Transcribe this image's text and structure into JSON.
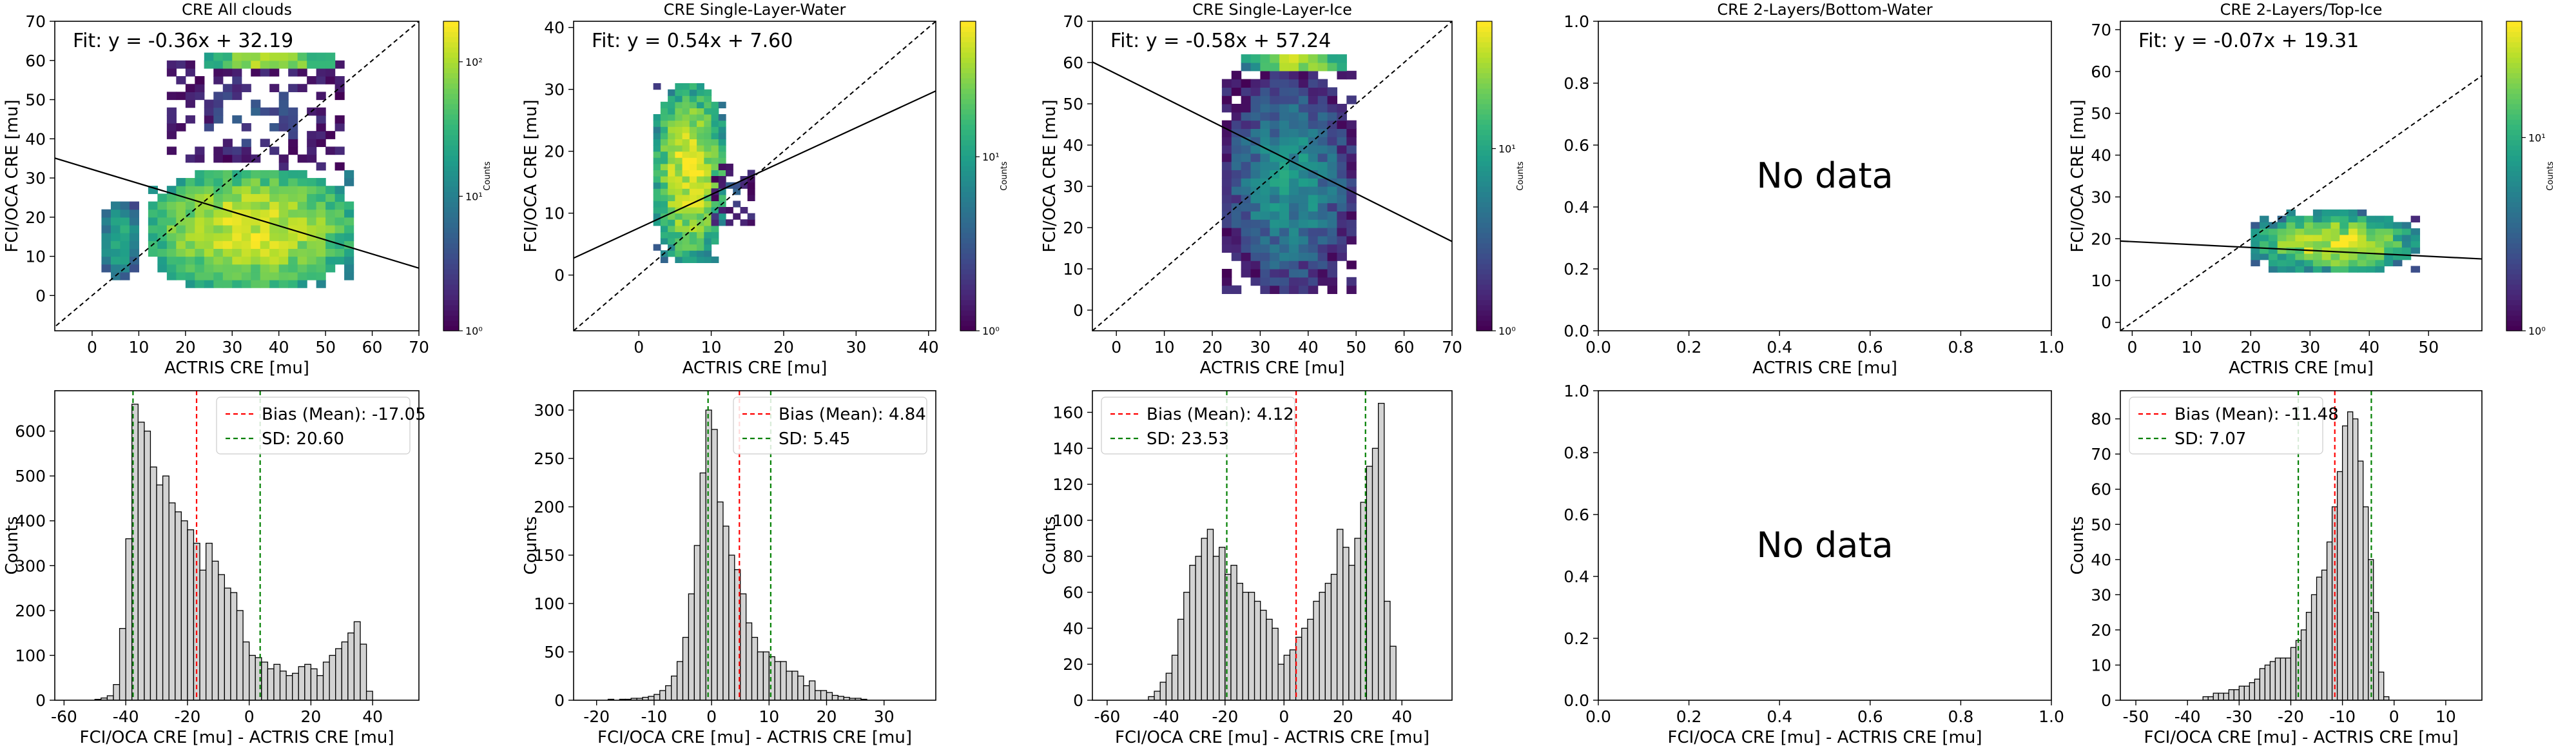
{
  "chart_data": [
    {
      "type": "heatmap",
      "title": "CRE All clouds",
      "xlabel": "ACTRIS CRE [mu]",
      "ylabel": "FCI/OCA CRE [mu]",
      "xlim": [
        -8,
        70
      ],
      "ylim": [
        -9,
        70
      ],
      "xticks": [
        0,
        10,
        20,
        30,
        40,
        50,
        60,
        70
      ],
      "yticks": [
        0,
        10,
        20,
        30,
        40,
        50,
        60,
        70
      ],
      "fit_text": "Fit: y = -0.36x + 32.19",
      "fit": {
        "slope": -0.36,
        "intercept": 32.19
      },
      "identity_line": true,
      "colorbar": {
        "label": "Counts",
        "scale": "log",
        "min": 1,
        "max": 200,
        "ticks": [
          {
            "v": 1,
            "t": "10⁰"
          },
          {
            "v": 10,
            "t": "10¹"
          },
          {
            "v": 100,
            "t": "10²"
          }
        ]
      },
      "binw": 2,
      "clusters": [
        {
          "x": [
            2,
            10
          ],
          "y": [
            4,
            24
          ],
          "peak": 30
        },
        {
          "x": [
            12,
            56
          ],
          "y": [
            2,
            32
          ],
          "peak": 160
        },
        {
          "x": [
            16,
            54
          ],
          "y": [
            32,
            60
          ],
          "peak": 4,
          "sparse": true
        },
        {
          "x": [
            24,
            52
          ],
          "y": [
            58,
            62
          ],
          "peak": 150
        }
      ]
    },
    {
      "type": "heatmap",
      "title": "CRE Single-Layer-Water",
      "xlabel": "ACTRIS CRE [mu]",
      "ylabel": "FCI/OCA CRE [mu]",
      "xlim": [
        -9,
        41
      ],
      "ylim": [
        -9,
        41
      ],
      "xticks": [
        0,
        10,
        20,
        30,
        40
      ],
      "yticks": [
        0,
        10,
        20,
        30,
        40
      ],
      "fit_text": "Fit: y = 0.54x + 7.60",
      "fit": {
        "slope": 0.54,
        "intercept": 7.6
      },
      "identity_line": true,
      "colorbar": {
        "label": "Counts",
        "scale": "log",
        "min": 1,
        "max": 60,
        "ticks": [
          {
            "v": 1,
            "t": "10⁰"
          },
          {
            "v": 10,
            "t": "10¹"
          }
        ]
      },
      "binw": 1,
      "clusters": [
        {
          "x": [
            2,
            12
          ],
          "y": [
            2,
            31
          ],
          "peak": 55
        },
        {
          "x": [
            10,
            16
          ],
          "y": [
            8,
            18
          ],
          "peak": 3,
          "sparse": true
        }
      ]
    },
    {
      "type": "heatmap",
      "title": "CRE Single-Layer-Ice",
      "xlabel": "ACTRIS CRE [mu]",
      "ylabel": "FCI/OCA CRE [mu]",
      "xlim": [
        -5,
        70
      ],
      "ylim": [
        -5,
        70
      ],
      "xticks": [
        0,
        10,
        20,
        30,
        40,
        50,
        60,
        70
      ],
      "yticks": [
        0,
        10,
        20,
        30,
        40,
        50,
        60,
        70
      ],
      "fit_text": "Fit: y = -0.58x + 57.24",
      "fit": {
        "slope": -0.58,
        "intercept": 57.24
      },
      "identity_line": true,
      "colorbar": {
        "label": "Counts",
        "scale": "log",
        "min": 1,
        "max": 50,
        "ticks": [
          {
            "v": 1,
            "t": "10⁰"
          },
          {
            "v": 10,
            "t": "10¹"
          }
        ]
      },
      "binw": 2,
      "clusters": [
        {
          "x": [
            22,
            50
          ],
          "y": [
            4,
            58
          ],
          "peak": 8
        },
        {
          "x": [
            26,
            48
          ],
          "y": [
            58,
            62
          ],
          "peak": 45
        }
      ]
    },
    {
      "type": "scatter",
      "title": "CRE 2-Layers/Bottom-Water",
      "xlabel": "ACTRIS CRE [mu]",
      "ylabel": "",
      "xlim": [
        0,
        1
      ],
      "ylim": [
        0,
        1
      ],
      "xticks": [
        0,
        0.2,
        0.4,
        0.6,
        0.8,
        1.0
      ],
      "yticks": [
        0,
        0.2,
        0.4,
        0.6,
        0.8,
        1.0
      ],
      "tick_format": "1f",
      "annotation": "No data"
    },
    {
      "type": "heatmap",
      "title": "CRE 2-Layers/Top-Ice",
      "xlabel": "ACTRIS CRE [mu]",
      "ylabel": "FCI/OCA CRE [mu]",
      "xlim": [
        -2,
        59
      ],
      "ylim": [
        -2,
        72
      ],
      "xticks": [
        0,
        10,
        20,
        30,
        40,
        50
      ],
      "yticks": [
        0,
        10,
        20,
        30,
        40,
        50,
        60,
        70
      ],
      "fit_text": "Fit: y = -0.07x + 19.31",
      "fit": {
        "slope": -0.07,
        "intercept": 19.31
      },
      "identity_line": true,
      "colorbar": {
        "label": "Counts",
        "scale": "log",
        "min": 1,
        "max": 40,
        "ticks": [
          {
            "v": 1,
            "t": "10⁰"
          },
          {
            "v": 10,
            "t": "10¹"
          }
        ]
      },
      "binw": 1.5,
      "clusters": [
        {
          "x": [
            20,
            48
          ],
          "y": [
            12,
            26
          ],
          "peak": 35
        }
      ]
    },
    {
      "type": "bar",
      "title": "",
      "xlabel": "FCI/OCA CRE [mu] - ACTRIS CRE [mu]",
      "ylabel": "Counts",
      "xlim": [
        -63,
        55
      ],
      "ylim": [
        0,
        690
      ],
      "xticks": [
        -60,
        -40,
        -20,
        0,
        20,
        40
      ],
      "yticks": [
        0,
        100,
        200,
        300,
        400,
        500,
        600
      ],
      "bin_start": -50,
      "bin_width": 2,
      "values": [
        2,
        5,
        10,
        35,
        160,
        360,
        660,
        620,
        600,
        520,
        480,
        500,
        440,
        420,
        400,
        380,
        350,
        290,
        350,
        310,
        280,
        250,
        240,
        200,
        130,
        100,
        95,
        85,
        70,
        80,
        65,
        55,
        60,
        75,
        80,
        70,
        55,
        85,
        100,
        115,
        130,
        150,
        175,
        125,
        20
      ],
      "bias": -17.05,
      "sd": 20.6,
      "legend": [
        "Bias (Mean): -17.05",
        "SD: 20.60"
      ]
    },
    {
      "type": "bar",
      "title": "",
      "xlabel": "FCI/OCA CRE [mu] - ACTRIS CRE [mu]",
      "ylabel": "Counts",
      "xlim": [
        -24,
        39
      ],
      "ylim": [
        0,
        320
      ],
      "xticks": [
        -20,
        -10,
        0,
        10,
        20,
        30
      ],
      "yticks": [
        0,
        50,
        100,
        150,
        200,
        250,
        300
      ],
      "bin_start": -18,
      "bin_width": 1,
      "values": [
        1,
        0,
        1,
        1,
        2,
        2,
        3,
        4,
        6,
        10,
        15,
        25,
        40,
        65,
        110,
        160,
        235,
        300,
        280,
        205,
        180,
        150,
        135,
        110,
        80,
        65,
        50,
        50,
        45,
        40,
        40,
        30,
        30,
        25,
        15,
        20,
        10,
        10,
        8,
        5,
        4,
        3,
        2,
        2,
        1
      ],
      "bias": 4.84,
      "sd": 5.45,
      "legend": [
        "Bias (Mean): 4.84",
        "SD: 5.45"
      ]
    },
    {
      "type": "bar",
      "title": "",
      "xlabel": "FCI/OCA CRE [mu] - ACTRIS CRE [mu]",
      "ylabel": "Counts",
      "xlim": [
        -65,
        57
      ],
      "ylim": [
        0,
        172
      ],
      "xticks": [
        -60,
        -40,
        -20,
        0,
        20,
        40
      ],
      "yticks": [
        0,
        20,
        40,
        60,
        80,
        100,
        120,
        140,
        160
      ],
      "bin_start": -46,
      "bin_width": 2,
      "values": [
        2,
        5,
        10,
        15,
        25,
        45,
        60,
        75,
        80,
        90,
        95,
        80,
        85,
        70,
        75,
        65,
        60,
        60,
        55,
        50,
        45,
        40,
        20,
        25,
        28,
        35,
        40,
        45,
        55,
        60,
        65,
        70,
        95,
        85,
        75,
        90,
        110,
        130,
        140,
        165,
        55,
        30
      ],
      "bias": 4.12,
      "sd": 23.53,
      "legend": [
        "Bias (Mean): 4.12",
        "SD: 23.53"
      ]
    },
    {
      "type": "bar",
      "title": "",
      "xlabel": "FCI/OCA CRE [mu] - ACTRIS CRE [mu]",
      "ylabel": "",
      "xlim": [
        0,
        1
      ],
      "ylim": [
        0,
        1
      ],
      "xticks": [
        0,
        0.2,
        0.4,
        0.6,
        0.8,
        1.0
      ],
      "yticks": [
        0,
        0.2,
        0.4,
        0.6,
        0.8,
        1.0
      ],
      "tick_format": "1f",
      "annotation": "No data"
    },
    {
      "type": "bar",
      "title": "",
      "xlabel": "FCI/OCA CRE [mu] - ACTRIS CRE [mu]",
      "ylabel": "Counts",
      "xlim": [
        -53,
        17
      ],
      "ylim": [
        0,
        88
      ],
      "xticks": [
        -50,
        -40,
        -30,
        -20,
        -10,
        0,
        10
      ],
      "yticks": [
        0,
        10,
        20,
        30,
        40,
        50,
        60,
        70,
        80
      ],
      "bin_start": -37,
      "bin_width": 1,
      "values": [
        1,
        1,
        2,
        2,
        2,
        3,
        3,
        4,
        4,
        5,
        6,
        9,
        10,
        11,
        12,
        12,
        12,
        15,
        17,
        20,
        25,
        30,
        35,
        37,
        45,
        55,
        65,
        78,
        82,
        80,
        68,
        55,
        40,
        25,
        8,
        1
      ],
      "bias": -11.48,
      "sd": 7.07,
      "legend": [
        "Bias (Mean): -11.48",
        "SD: 7.07"
      ]
    }
  ]
}
